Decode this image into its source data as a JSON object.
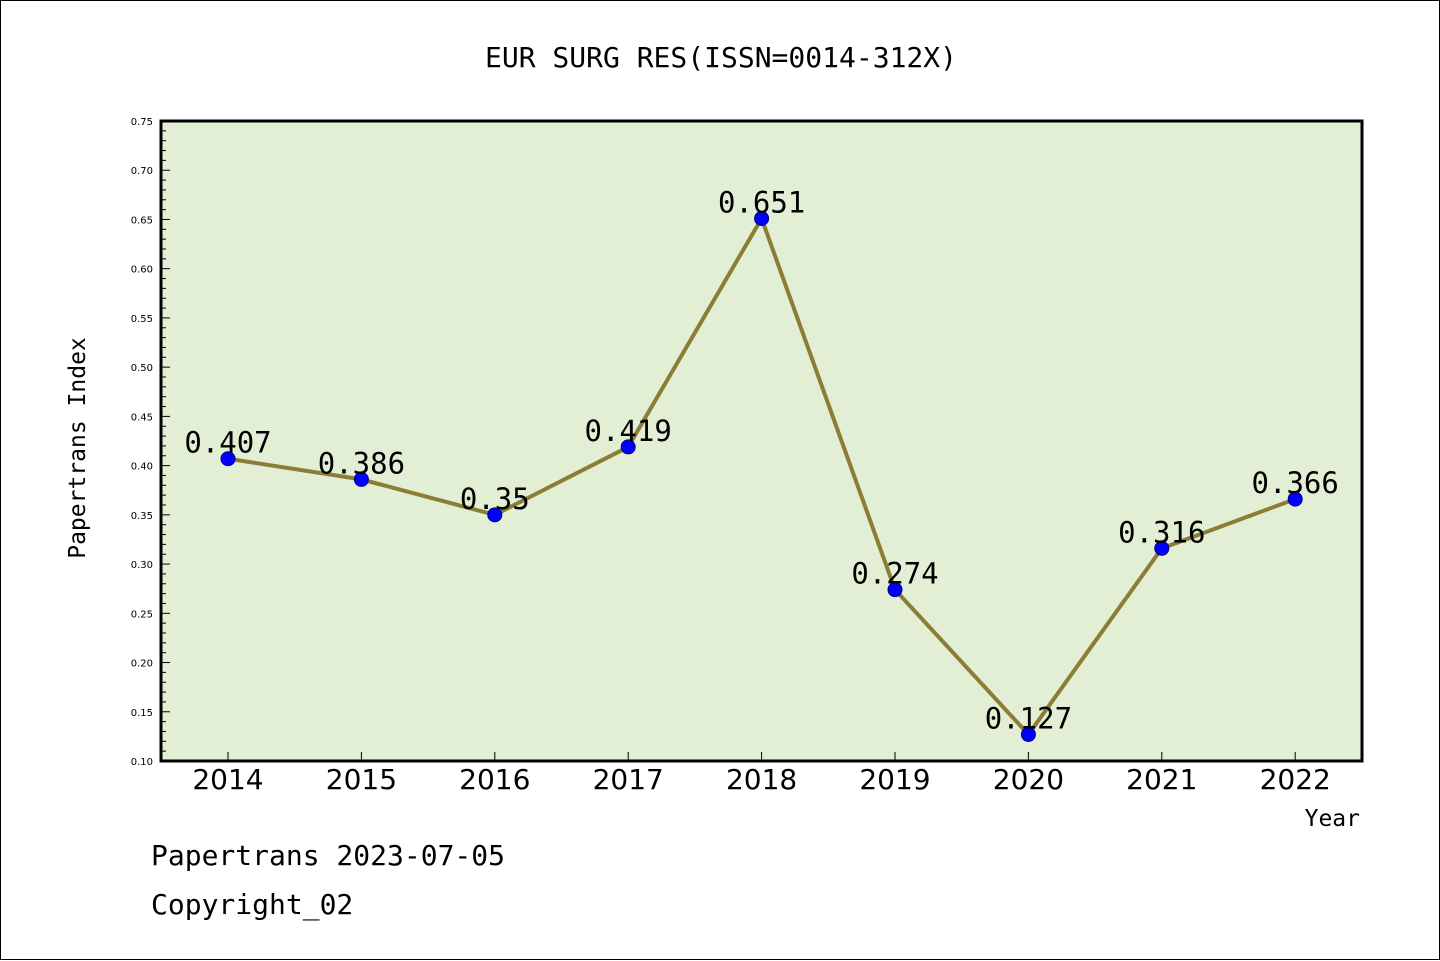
{
  "chart_data": {
    "type": "line",
    "title": "EUR SURG RES(ISSN=0014-312X)",
    "xlabel": "Year",
    "ylabel": "Papertrans Index",
    "categories": [
      "2014",
      "2015",
      "2016",
      "2017",
      "2018",
      "2019",
      "2020",
      "2021",
      "2022"
    ],
    "values": [
      0.407,
      0.386,
      0.35,
      0.419,
      0.651,
      0.274,
      0.127,
      0.316,
      0.366
    ],
    "data_labels": [
      "0.407",
      "0.386",
      "0.35",
      "0.419",
      "0.651",
      "0.274",
      "0.127",
      "0.316",
      "0.366"
    ],
    "ylim": [
      0.1,
      0.75
    ],
    "yticks": [
      "0.10",
      "0.15",
      "0.20",
      "0.25",
      "0.30",
      "0.35",
      "0.40",
      "0.45",
      "0.50",
      "0.55",
      "0.60",
      "0.65",
      "0.70",
      "0.75"
    ],
    "grid": false,
    "colors": {
      "plot_background": "#e2efd5",
      "line": "#8c7d35",
      "marker": "#0000ff",
      "marker_edge": "#00008b"
    }
  },
  "footer": {
    "line1": "Papertrans 2023-07-05",
    "line2": "Copyright_02"
  }
}
